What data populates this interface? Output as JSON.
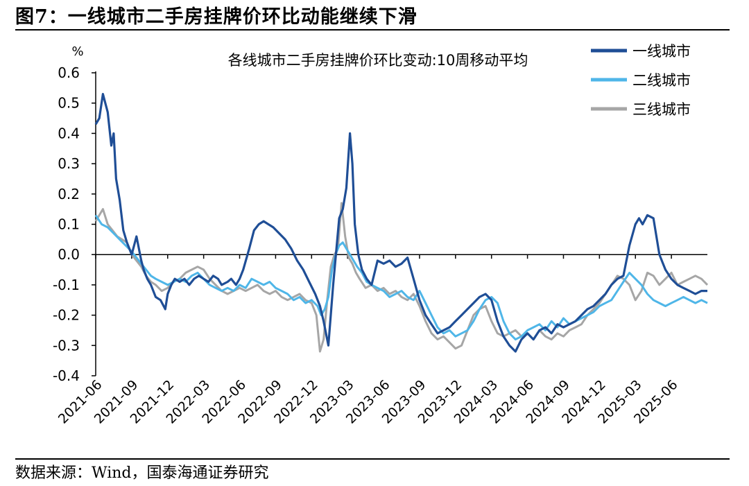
{
  "figure": {
    "title": "图7：一线城市二手房挂牌价环比动能继续下滑",
    "source": "数据来源：Wind，国泰海通证券研究"
  },
  "chart_data": {
    "type": "line",
    "title": "各线城市二手房挂牌价环比变动:10周移动平均",
    "ylabel": "%",
    "xlabel": "",
    "ylim": [
      -0.4,
      0.6
    ],
    "yticks": [
      -0.4,
      -0.3,
      -0.2,
      -0.1,
      0.0,
      0.1,
      0.2,
      0.3,
      0.4,
      0.5,
      0.6
    ],
    "ytick_labels": [
      "-0.4",
      "-0.3",
      "-0.2",
      "-0.1",
      "0.0",
      "0.1",
      "0.2",
      "0.3",
      "0.4",
      "0.5",
      "0.6"
    ],
    "xlim": [
      0,
      51
    ],
    "xtick_positions": [
      0,
      3,
      6,
      9,
      12,
      15,
      18,
      21,
      24,
      27,
      30,
      33,
      36,
      39,
      42,
      45,
      48
    ],
    "xtick_labels": [
      "2021-06",
      "2021-09",
      "2021-12",
      "2022-03",
      "2022-06",
      "2022-09",
      "2022-12",
      "2023-03",
      "2023-06",
      "2023-09",
      "2023-12",
      "2024-03",
      "2024-06",
      "2024-09",
      "2024-12",
      "2025-03",
      "2025-06"
    ],
    "legend_position": "top-right",
    "colors": {
      "tier1": "#1f4e96",
      "tier2": "#4fb6e8",
      "tier3": "#a6a6a6"
    },
    "series": [
      {
        "name": "一线城市",
        "x": [
          0,
          0.3,
          0.6,
          1.0,
          1.3,
          1.5,
          1.7,
          2.0,
          2.3,
          2.6,
          3.0,
          3.4,
          3.8,
          4.0,
          4.3,
          4.6,
          5.0,
          5.4,
          5.8,
          6.0,
          6.3,
          6.6,
          7.0,
          7.4,
          7.8,
          8.2,
          8.6,
          9.0,
          9.4,
          9.8,
          10.2,
          10.5,
          11.0,
          11.3,
          11.7,
          12.0,
          12.3,
          12.8,
          13.2,
          13.6,
          14.0,
          14.4,
          14.8,
          15.3,
          15.8,
          16.3,
          16.8,
          17.3,
          17.8,
          18.3,
          18.7,
          19.0,
          19.4,
          19.8,
          20.3,
          20.6,
          20.9,
          21.2,
          21.4,
          21.6,
          21.9,
          22.2,
          22.6,
          23.0,
          23.5,
          24.0,
          24.5,
          25.0,
          25.5,
          26.0,
          26.5,
          27.0,
          27.5,
          28.0,
          28.5,
          29.0,
          29.5,
          30.0,
          30.5,
          31.0,
          31.5,
          32.0,
          32.5,
          33.0,
          33.5,
          34.0,
          34.5,
          35.0,
          35.5,
          36.0,
          36.5,
          37.0,
          37.5,
          38.0,
          38.5,
          39.0,
          39.5,
          40.0,
          40.5,
          41.0,
          41.5,
          42.0,
          42.5,
          43.0,
          43.5,
          44.0,
          44.5,
          45.0,
          45.3,
          45.6,
          46.0,
          46.5,
          47.0,
          47.5,
          48.0,
          48.5,
          49.0,
          49.5,
          50.0,
          50.5,
          51.0
        ],
        "values": [
          0.43,
          0.45,
          0.53,
          0.47,
          0.36,
          0.4,
          0.25,
          0.18,
          0.08,
          0.04,
          0.0,
          0.06,
          -0.02,
          -0.05,
          -0.08,
          -0.1,
          -0.14,
          -0.15,
          -0.18,
          -0.13,
          -0.1,
          -0.08,
          -0.09,
          -0.08,
          -0.1,
          -0.08,
          -0.07,
          -0.08,
          -0.09,
          -0.07,
          -0.08,
          -0.1,
          -0.09,
          -0.08,
          -0.1,
          -0.08,
          -0.05,
          0.02,
          0.08,
          0.1,
          0.11,
          0.1,
          0.09,
          0.07,
          0.05,
          0.02,
          -0.02,
          -0.05,
          -0.09,
          -0.13,
          -0.17,
          -0.22,
          -0.3,
          -0.1,
          0.12,
          0.15,
          0.22,
          0.4,
          0.3,
          0.1,
          0.0,
          -0.05,
          -0.08,
          -0.1,
          -0.02,
          -0.03,
          -0.02,
          -0.04,
          -0.03,
          -0.01,
          -0.08,
          -0.15,
          -0.2,
          -0.23,
          -0.26,
          -0.25,
          -0.24,
          -0.22,
          -0.2,
          -0.18,
          -0.16,
          -0.14,
          -0.13,
          -0.15,
          -0.22,
          -0.27,
          -0.3,
          -0.32,
          -0.28,
          -0.26,
          -0.28,
          -0.25,
          -0.24,
          -0.26,
          -0.23,
          -0.24,
          -0.23,
          -0.22,
          -0.2,
          -0.18,
          -0.17,
          -0.15,
          -0.13,
          -0.1,
          -0.08,
          -0.07,
          0.03,
          0.1,
          0.12,
          0.1,
          0.13,
          0.12,
          0.0,
          -0.05,
          -0.08,
          -0.1,
          -0.11,
          -0.12,
          -0.13,
          -0.12,
          -0.12
        ]
      },
      {
        "name": "二线城市",
        "x": [
          0,
          0.5,
          1.0,
          1.5,
          2.0,
          2.5,
          3.0,
          3.4,
          3.8,
          4.2,
          4.6,
          5.0,
          5.5,
          6.0,
          6.5,
          7.0,
          7.5,
          8.0,
          8.5,
          9.0,
          9.5,
          10.0,
          10.5,
          11.0,
          11.5,
          12.0,
          12.5,
          13.0,
          13.5,
          14.0,
          14.5,
          15.0,
          15.5,
          16.0,
          16.5,
          17.0,
          17.5,
          18.0,
          18.5,
          18.8,
          19.1,
          19.4,
          19.7,
          20.0,
          20.3,
          20.6,
          20.9,
          21.2,
          21.5,
          21.8,
          22.2,
          22.6,
          23.0,
          23.5,
          24.0,
          24.5,
          25.0,
          25.5,
          26.0,
          26.5,
          27.0,
          27.5,
          28.0,
          28.5,
          29.0,
          29.5,
          30.0,
          30.5,
          31.0,
          31.5,
          32.0,
          32.5,
          33.0,
          33.5,
          34.0,
          34.5,
          35.0,
          35.5,
          36.0,
          36.5,
          37.0,
          37.5,
          38.0,
          38.5,
          39.0,
          39.5,
          40.0,
          40.5,
          41.0,
          41.5,
          42.0,
          42.5,
          43.0,
          43.5,
          44.0,
          44.5,
          45.0,
          45.5,
          46.0,
          46.5,
          47.0,
          47.5,
          48.0,
          48.5,
          49.0,
          49.5,
          50.0,
          50.5,
          51.0
        ],
        "values": [
          0.13,
          0.1,
          0.09,
          0.07,
          0.05,
          0.03,
          0.01,
          -0.01,
          -0.03,
          -0.05,
          -0.07,
          -0.08,
          -0.09,
          -0.1,
          -0.09,
          -0.08,
          -0.09,
          -0.07,
          -0.06,
          -0.08,
          -0.1,
          -0.11,
          -0.12,
          -0.11,
          -0.12,
          -0.1,
          -0.11,
          -0.08,
          -0.09,
          -0.1,
          -0.09,
          -0.11,
          -0.12,
          -0.13,
          -0.15,
          -0.14,
          -0.16,
          -0.15,
          -0.17,
          -0.2,
          -0.18,
          -0.14,
          -0.05,
          0.0,
          0.03,
          0.04,
          0.02,
          0.0,
          -0.02,
          -0.04,
          -0.06,
          -0.09,
          -0.1,
          -0.11,
          -0.12,
          -0.14,
          -0.13,
          -0.12,
          -0.14,
          -0.15,
          -0.12,
          -0.16,
          -0.2,
          -0.24,
          -0.26,
          -0.25,
          -0.27,
          -0.26,
          -0.25,
          -0.22,
          -0.18,
          -0.15,
          -0.14,
          -0.16,
          -0.22,
          -0.26,
          -0.28,
          -0.27,
          -0.25,
          -0.24,
          -0.23,
          -0.25,
          -0.22,
          -0.24,
          -0.21,
          -0.23,
          -0.22,
          -0.21,
          -0.2,
          -0.19,
          -0.17,
          -0.16,
          -0.15,
          -0.12,
          -0.09,
          -0.06,
          -0.08,
          -0.1,
          -0.13,
          -0.15,
          -0.16,
          -0.17,
          -0.16,
          -0.15,
          -0.14,
          -0.15,
          -0.16,
          -0.15,
          -0.16
        ]
      },
      {
        "name": "三线城市",
        "x": [
          0,
          0.3,
          0.6,
          1.0,
          1.4,
          1.8,
          2.2,
          2.6,
          3.0,
          3.4,
          3.8,
          4.2,
          4.6,
          5.0,
          5.5,
          6.0,
          6.5,
          7.0,
          7.5,
          8.0,
          8.5,
          9.0,
          9.5,
          10.0,
          10.5,
          11.0,
          11.5,
          12.0,
          12.5,
          13.0,
          13.5,
          14.0,
          14.5,
          15.0,
          15.5,
          16.0,
          16.5,
          17.0,
          17.5,
          18.0,
          18.4,
          18.7,
          19.0,
          19.3,
          19.6,
          19.9,
          20.2,
          20.5,
          20.8,
          21.1,
          21.4,
          21.7,
          22.0,
          22.5,
          23.0,
          23.5,
          24.0,
          24.5,
          25.0,
          25.5,
          26.0,
          26.5,
          27.0,
          27.5,
          28.0,
          28.5,
          29.0,
          29.5,
          30.0,
          30.5,
          31.0,
          31.5,
          32.0,
          32.5,
          33.0,
          33.5,
          34.0,
          34.5,
          35.0,
          35.5,
          36.0,
          36.5,
          37.0,
          37.5,
          38.0,
          38.5,
          39.0,
          39.5,
          40.0,
          40.5,
          41.0,
          41.5,
          42.0,
          42.5,
          43.0,
          43.5,
          44.0,
          44.5,
          45.0,
          45.5,
          46.0,
          46.5,
          47.0,
          47.5,
          48.0,
          48.5,
          49.0,
          49.5,
          50.0,
          50.5,
          51.0
        ],
        "values": [
          0.11,
          0.13,
          0.15,
          0.1,
          0.08,
          0.06,
          0.05,
          0.04,
          0.0,
          -0.02,
          -0.04,
          -0.07,
          -0.09,
          -0.1,
          -0.12,
          -0.11,
          -0.09,
          -0.08,
          -0.06,
          -0.05,
          -0.04,
          -0.05,
          -0.08,
          -0.1,
          -0.12,
          -0.13,
          -0.12,
          -0.11,
          -0.12,
          -0.11,
          -0.1,
          -0.12,
          -0.13,
          -0.12,
          -0.14,
          -0.15,
          -0.14,
          -0.13,
          -0.15,
          -0.16,
          -0.2,
          -0.32,
          -0.28,
          -0.15,
          -0.04,
          0.0,
          0.02,
          0.17,
          0.06,
          -0.01,
          -0.03,
          -0.06,
          -0.08,
          -0.11,
          -0.1,
          -0.12,
          -0.11,
          -0.13,
          -0.12,
          -0.14,
          -0.15,
          -0.13,
          -0.17,
          -0.22,
          -0.26,
          -0.28,
          -0.27,
          -0.29,
          -0.31,
          -0.3,
          -0.25,
          -0.2,
          -0.18,
          -0.17,
          -0.22,
          -0.26,
          -0.27,
          -0.26,
          -0.25,
          -0.27,
          -0.26,
          -0.28,
          -0.25,
          -0.27,
          -0.28,
          -0.26,
          -0.27,
          -0.25,
          -0.24,
          -0.23,
          -0.2,
          -0.18,
          -0.16,
          -0.13,
          -0.1,
          -0.07,
          -0.08,
          -0.1,
          -0.15,
          -0.12,
          -0.06,
          -0.07,
          -0.1,
          -0.08,
          -0.06,
          -0.1,
          -0.09,
          -0.08,
          -0.07,
          -0.08,
          -0.1
        ]
      }
    ]
  }
}
